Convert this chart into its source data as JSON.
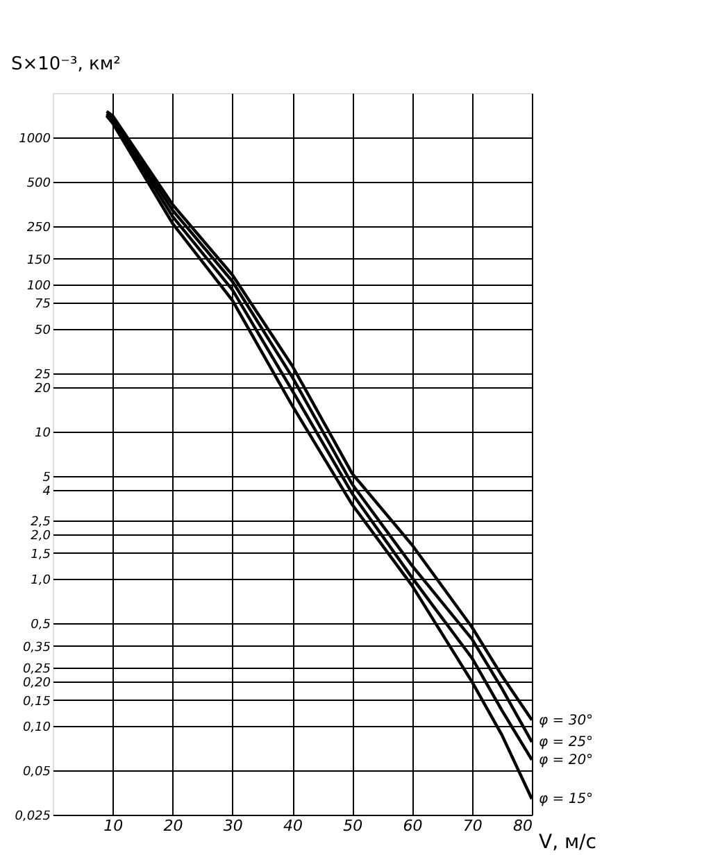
{
  "chart_data": {
    "type": "line",
    "xlabel": "V, м/с",
    "ylabel": "S×10⁻³, км²",
    "log": "y",
    "x": [
      9,
      10,
      20,
      30,
      40,
      50,
      60,
      70,
      75,
      80
    ],
    "series": [
      {
        "name": "φ = 30°",
        "color": "#000000",
        "values": [
          1500,
          1400,
          350,
          116,
          28,
          5.2,
          1.7,
          0.47,
          0.22,
          0.11
        ]
      },
      {
        "name": "φ = 25°",
        "color": "#000000",
        "values": [
          1450,
          1350,
          320,
          105,
          23.5,
          4.4,
          1.23,
          0.39,
          0.18,
          0.078
        ]
      },
      {
        "name": "φ = 20°",
        "color": "#000000",
        "values": [
          1420,
          1300,
          290,
          92,
          19,
          3.8,
          1.02,
          0.29,
          0.128,
          0.059
        ]
      },
      {
        "name": "φ = 15°",
        "color": "#000000",
        "values": [
          1400,
          1250,
          260,
          78,
          15,
          3.2,
          0.9,
          0.2,
          0.087,
          0.032
        ]
      }
    ],
    "xlim": [
      0,
      80
    ],
    "xticks": [
      10,
      20,
      30,
      40,
      50,
      60,
      70,
      80
    ],
    "ylim": [
      0.025,
      2000
    ],
    "yticks": [
      1000,
      500,
      250,
      150,
      100,
      75,
      50,
      25,
      20,
      10,
      5,
      4,
      {
        "value": 2.5,
        "label": "2,5"
      },
      {
        "value": 2.0,
        "label": "2,0"
      },
      {
        "value": 1.5,
        "label": "1,5"
      },
      {
        "value": 1.0,
        "label": "1,0"
      },
      {
        "value": 0.5,
        "label": "0,5"
      },
      {
        "value": 0.35,
        "label": "0,35"
      },
      {
        "value": 0.25,
        "label": "0,25"
      },
      {
        "value": 0.2,
        "label": "0,20"
      },
      {
        "value": 0.15,
        "label": "0,15"
      },
      {
        "value": 0.1,
        "label": "0,10"
      },
      {
        "value": 0.05,
        "label": "0,05"
      },
      {
        "value": 0.025,
        "label": "0,025"
      }
    ],
    "grid": true,
    "legend": false,
    "line_style": "solid",
    "marker": "none"
  }
}
